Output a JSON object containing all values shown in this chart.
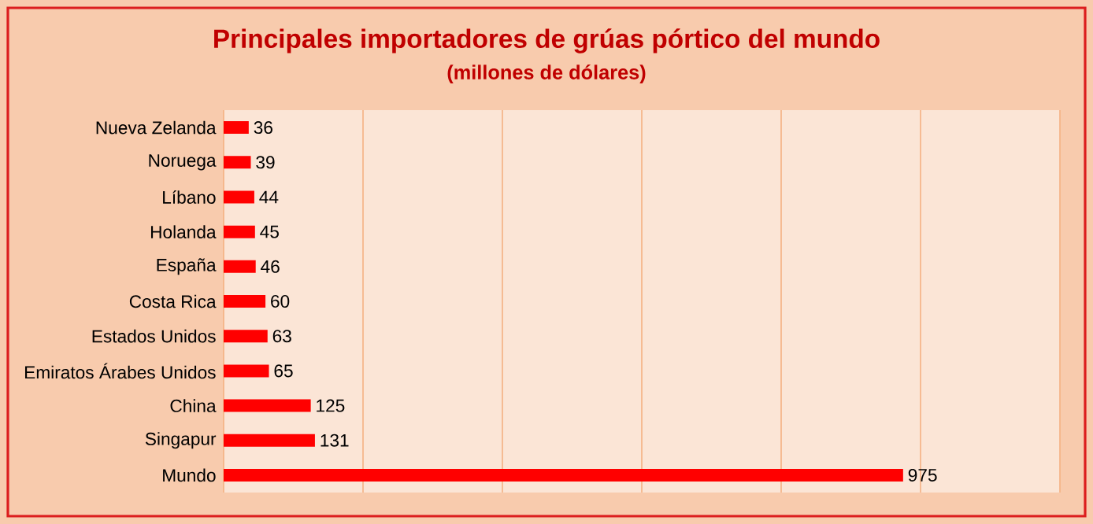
{
  "chart_data": {
    "type": "bar",
    "orientation": "horizontal",
    "title": "Principales importadores de grúas pórtico del mundo",
    "subtitle": "(millones de dólares)",
    "categories": [
      "Nueva Zelanda",
      "Noruega",
      "Líbano",
      "Holanda",
      "España",
      "Costa Rica",
      "Estados Unidos",
      "Emiratos Árabes Unidos",
      "China",
      "Singapur",
      "Mundo"
    ],
    "values": [
      36,
      39,
      44,
      45,
      46,
      60,
      63,
      65,
      125,
      131,
      975
    ],
    "color": "#ff0000",
    "data_labels": true,
    "grid": "x",
    "tick_labels": "y",
    "xlim": [
      0,
      1200
    ],
    "xticks": [
      {
        "value": 0,
        "label": null
      },
      {
        "value": 200,
        "label": null
      },
      {
        "value": 400,
        "label": null
      },
      {
        "value": 600,
        "label": null
      },
      {
        "value": 800,
        "label": null
      },
      {
        "value": 1000,
        "label": null
      },
      {
        "value": 1200,
        "label": null
      }
    ]
  }
}
